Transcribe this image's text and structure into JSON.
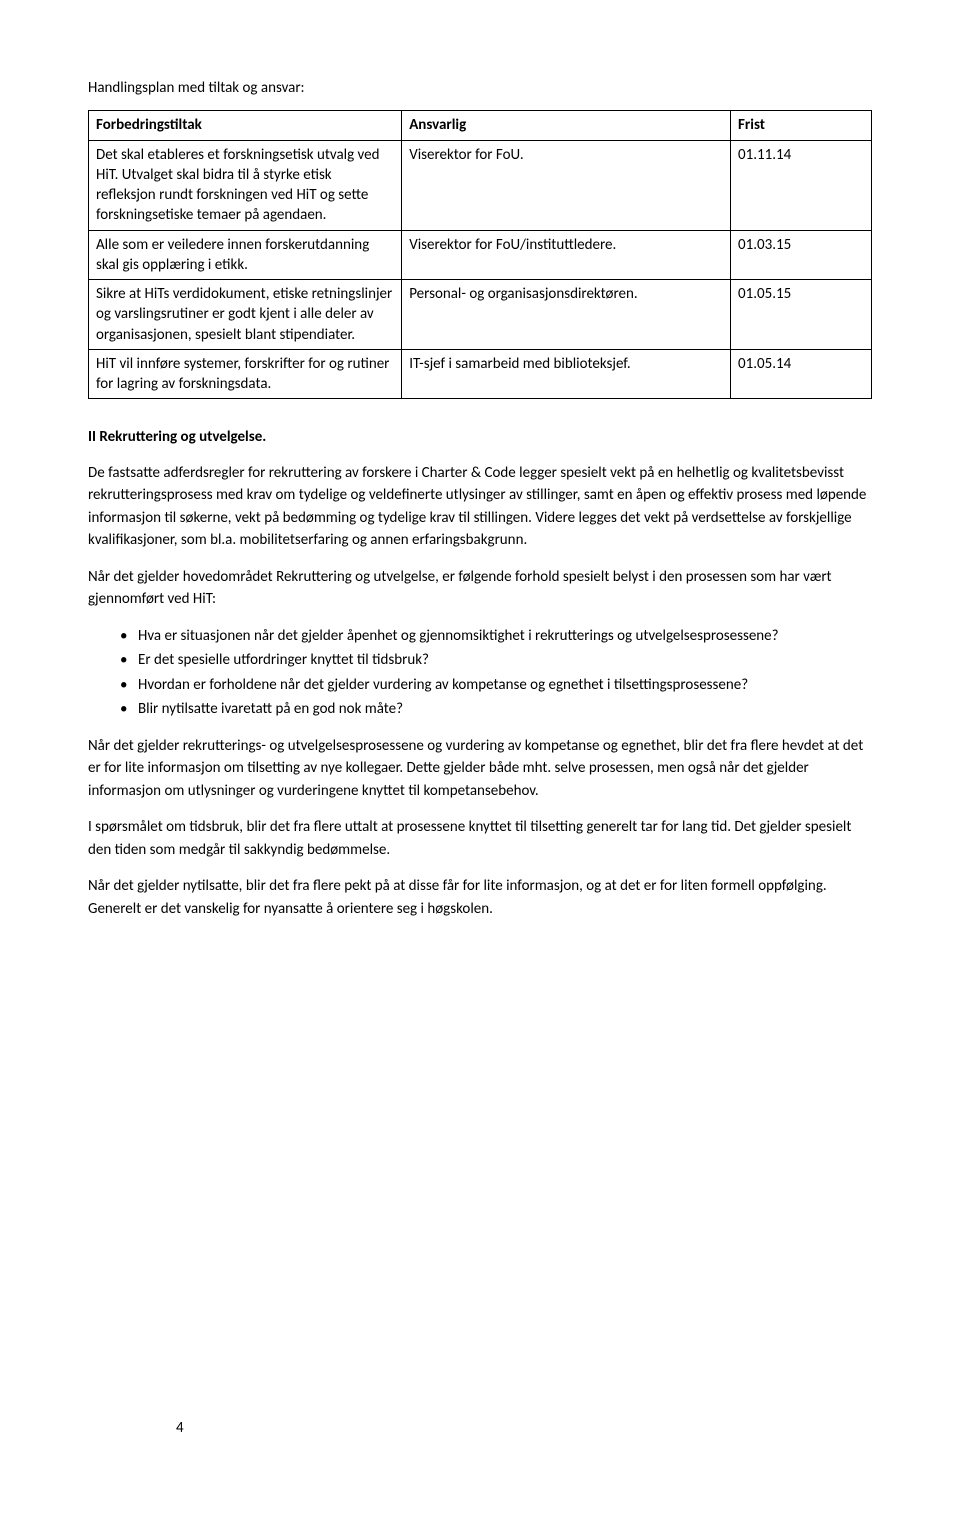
{
  "title": "Handlingsplan med tiltak og ansvar:",
  "table": {
    "columns": [
      "Forbedringstiltak",
      "Ansvarlig",
      "Frist"
    ],
    "col_widths": [
      "40%",
      "42%",
      "18%"
    ],
    "rows": [
      [
        "Det skal etableres et forskningsetisk utvalg ved HiT. Utvalget skal bidra til å styrke etisk refleksjon rundt forskningen ved HiT og sette forskningsetiske temaer på agendaen.",
        "Viserektor for FoU.",
        "01.11.14"
      ],
      [
        "Alle som er veiledere innen forskerutdanning skal gis opplæring i etikk.",
        "Viserektor for FoU/instituttledere.",
        "01.03.15"
      ],
      [
        "Sikre at HiTs verdidokument, etiske retningslinjer og varslingsrutiner er godt kjent i alle deler av organisasjonen, spesielt blant stipendiater.",
        "Personal- og organisasjonsdirektøren.",
        "01.05.15"
      ],
      [
        "HiT vil innføre systemer, forskrifter for og rutiner for lagring av forskningsdata.",
        "IT-sjef i samarbeid med biblioteksjef.",
        "01.05.14"
      ]
    ],
    "border_color": "#000000",
    "header_fontweight": 700,
    "fontsize": 15
  },
  "section_heading": "II Rekruttering og utvelgelse.",
  "paragraphs_before": [
    "De fastsatte adferdsregler for rekruttering av forskere i Charter & Code legger spesielt vekt på en helhetlig og kvalitetsbevisst rekrutteringsprosess med krav om tydelige og veldefinerte utlysinger av stillinger, samt en åpen og effektiv prosess med løpende informasjon til søkerne, vekt på bedømming og tydelige krav til stillingen. Videre legges det vekt på verdsettelse av forskjellige kvalifikasjoner, som bl.a. mobilitetserfaring og annen erfaringsbakgrunn.",
    "Når det gjelder hovedområdet Rekruttering og utvelgelse, er følgende forhold spesielt belyst i den prosessen som har vært gjennomført ved HiT:"
  ],
  "bullets": [
    "Hva er situasjonen når det gjelder åpenhet og gjennomsiktighet i rekrutterings og utvelgelsesprosessene?",
    "Er det spesielle utfordringer knyttet til tidsbruk?",
    "Hvordan er forholdene når det gjelder vurdering av kompetanse og egnethet i tilsettingsprosessene?",
    "Blir nytilsatte ivaretatt på en god nok måte?"
  ],
  "paragraphs_after": [
    "Når det gjelder rekrutterings- og utvelgelsesprosessene og vurdering av kompetanse og egnethet, blir det fra flere hevdet at det er for lite informasjon om tilsetting av nye kollegaer. Dette gjelder både mht. selve prosessen, men også når det gjelder informasjon om utlysninger og vurderingene knyttet til kompetansebehov.",
    "I spørsmålet om tidsbruk, blir det fra flere uttalt at prosessene knyttet til tilsetting generelt tar for lang tid. Det gjelder spesielt den tiden som medgår til sakkyndig bedømmelse.",
    "Når det gjelder nytilsatte, blir det fra flere pekt på at disse får for lite informasjon, og at det er for liten formell oppfølging. Generelt er det vanskelig for nyansatte å orientere seg i høgskolen."
  ],
  "page_number": "4",
  "colors": {
    "background": "#ffffff",
    "text": "#000000",
    "border": "#000000"
  },
  "typography": {
    "body_fontsize": 15,
    "body_lineheight": 1.5,
    "heading_fontweight": 700
  }
}
